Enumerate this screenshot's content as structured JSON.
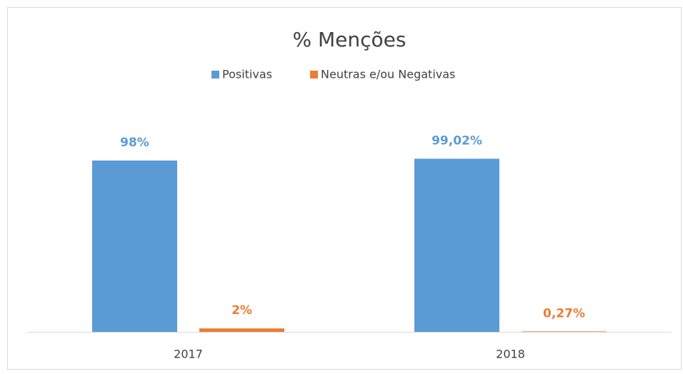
{
  "chart_data": {
    "type": "bar",
    "title": "% Menções",
    "categories": [
      "2017",
      "2018"
    ],
    "series": [
      {
        "name": "Positivas",
        "color": "#5b9bd5",
        "values": [
          98,
          99.02
        ],
        "value_labels": [
          "98%",
          "99,02%"
        ]
      },
      {
        "name": "Neutras e/ou Negativas",
        "color": "#ed7d31",
        "values": [
          2,
          0.27
        ],
        "value_labels": [
          "2%",
          "0,27%"
        ]
      }
    ],
    "ylim": [
      0,
      120
    ],
    "legend": "top"
  }
}
